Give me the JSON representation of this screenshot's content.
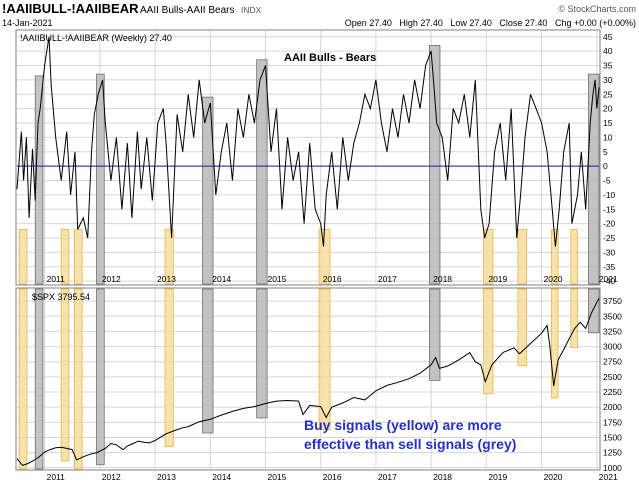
{
  "header": {
    "symbol": "!AAIIBULL-!AAIIBEAR",
    "description": "AAII Bulls-AAII Bears",
    "exchange": "INDX",
    "date": "14-Jan-2021",
    "ohlc": "Open 27.40   High 27.40   Low 27.40   Close 27.40   Chg +0.00 (+0.00%)",
    "brand": "© StockCharts.com"
  },
  "colors": {
    "line": "#000000",
    "zero_line": "#1a1aa6",
    "grey_band": "#b8b8b8",
    "grey_band_stroke": "#6e6e6e",
    "yellow_band": "#f7dd9e",
    "yellow_band_stroke": "#e4b64c",
    "annotation": "#2530c8",
    "grid": "#d6d6d6",
    "frame": "#808080"
  },
  "chart_data": [
    {
      "type": "line",
      "title": "AAII Bulls - Bears",
      "legend": "!AAIIBULL-!AAIIBEAR (Weekly) 27.40",
      "xlabel": "",
      "ylabel": "",
      "xlim": [
        2010.5,
        2021.04
      ],
      "ylim": [
        -41,
        47
      ],
      "yticks": [
        45,
        40,
        35,
        30,
        25,
        20,
        15,
        10,
        5,
        0,
        -5,
        -10,
        -15,
        -20,
        -25,
        -30,
        -35,
        -40
      ],
      "grid": true,
      "x": [
        2010.5,
        2010.58,
        2010.62,
        2010.67,
        2010.72,
        2010.78,
        2010.83,
        2010.88,
        2010.92,
        2011.0,
        2011.08,
        2011.12,
        2011.2,
        2011.3,
        2011.4,
        2011.47,
        2011.55,
        2011.6,
        2011.7,
        2011.78,
        2011.85,
        2011.9,
        2011.97,
        2012.05,
        2012.1,
        2012.2,
        2012.3,
        2012.4,
        2012.5,
        2012.58,
        2012.68,
        2012.75,
        2012.85,
        2012.95,
        2013.05,
        2013.15,
        2013.2,
        2013.3,
        2013.4,
        2013.5,
        2013.6,
        2013.7,
        2013.8,
        2013.9,
        2014.0,
        2014.1,
        2014.2,
        2014.3,
        2014.4,
        2014.5,
        2014.6,
        2014.7,
        2014.8,
        2014.9,
        2015.0,
        2015.1,
        2015.2,
        2015.3,
        2015.4,
        2015.5,
        2015.6,
        2015.7,
        2015.8,
        2015.9,
        2016.0,
        2016.05,
        2016.1,
        2016.2,
        2016.3,
        2016.4,
        2016.5,
        2016.6,
        2016.7,
        2016.8,
        2016.9,
        2017.0,
        2017.1,
        2017.2,
        2017.3,
        2017.4,
        2017.5,
        2017.6,
        2017.7,
        2017.8,
        2017.9,
        2018.0,
        2018.05,
        2018.1,
        2018.2,
        2018.3,
        2018.4,
        2018.5,
        2018.6,
        2018.7,
        2018.8,
        2018.9,
        2018.97,
        2019.05,
        2019.15,
        2019.25,
        2019.35,
        2019.45,
        2019.55,
        2019.62,
        2019.7,
        2019.8,
        2019.9,
        2020.0,
        2020.1,
        2020.17,
        2020.25,
        2020.32,
        2020.4,
        2020.5,
        2020.55,
        2020.65,
        2020.72,
        2020.8,
        2020.88,
        2020.93,
        2020.97,
        2021.0,
        2021.04
      ],
      "values": [
        -8,
        12,
        -5,
        10,
        -18,
        6,
        -12,
        15,
        20,
        35,
        45,
        28,
        10,
        -5,
        12,
        -10,
        5,
        -22,
        -18,
        -25,
        5,
        18,
        25,
        30,
        15,
        -5,
        10,
        -15,
        8,
        -18,
        12,
        -8,
        10,
        -12,
        15,
        20,
        8,
        -25,
        18,
        5,
        25,
        10,
        30,
        15,
        22,
        -10,
        5,
        15,
        -5,
        20,
        10,
        25,
        15,
        30,
        35,
        5,
        20,
        -15,
        10,
        -5,
        5,
        -20,
        8,
        -15,
        -20,
        -28,
        -10,
        5,
        -15,
        10,
        -5,
        8,
        15,
        25,
        20,
        30,
        15,
        5,
        20,
        10,
        25,
        15,
        30,
        20,
        35,
        40,
        28,
        15,
        10,
        -5,
        20,
        15,
        25,
        10,
        30,
        -15,
        -25,
        -20,
        5,
        15,
        -5,
        20,
        -25,
        -10,
        10,
        25,
        20,
        15,
        5,
        -10,
        -28,
        -15,
        5,
        15,
        -20,
        -10,
        5,
        -15,
        15,
        25,
        30,
        20,
        27.4
      ]
    },
    {
      "type": "line",
      "title": "",
      "legend": "$SPX 3795.54",
      "xlabel": "",
      "ylabel": "",
      "xlim": [
        2010.5,
        2021.04
      ],
      "ylim": [
        980,
        3950
      ],
      "yticks": [
        3750,
        3500,
        3250,
        3000,
        2750,
        2500,
        2250,
        2000,
        1750,
        1500,
        1250,
        1000
      ],
      "x_ticks": [
        "2011",
        "2012",
        "2013",
        "2014",
        "2015",
        "2016",
        "2017",
        "2018",
        "2019",
        "2020",
        "2021"
      ],
      "x_tick_values": [
        2011.0,
        2012.0,
        2013.0,
        2014.0,
        2015.0,
        2016.0,
        2017.0,
        2018.0,
        2019.0,
        2020.0,
        2021.0
      ],
      "grid": true,
      "x": [
        2010.5,
        2010.6,
        2010.7,
        2010.8,
        2010.9,
        2011.0,
        2011.1,
        2011.2,
        2011.3,
        2011.4,
        2011.5,
        2011.58,
        2011.65,
        2011.75,
        2011.85,
        2011.95,
        2012.1,
        2012.2,
        2012.3,
        2012.42,
        2012.5,
        2012.6,
        2012.7,
        2012.8,
        2012.9,
        2013.0,
        2013.2,
        2013.4,
        2013.5,
        2013.6,
        2013.8,
        2014.0,
        2014.2,
        2014.4,
        2014.6,
        2014.8,
        2015.0,
        2015.2,
        2015.4,
        2015.6,
        2015.68,
        2015.8,
        2016.0,
        2016.1,
        2016.2,
        2016.4,
        2016.6,
        2016.8,
        2017.0,
        2017.2,
        2017.4,
        2017.6,
        2017.8,
        2018.0,
        2018.08,
        2018.15,
        2018.3,
        2018.5,
        2018.7,
        2018.8,
        2018.9,
        2018.98,
        2019.1,
        2019.3,
        2019.4,
        2019.5,
        2019.6,
        2019.8,
        2020.0,
        2020.1,
        2020.15,
        2020.22,
        2020.3,
        2020.4,
        2020.5,
        2020.6,
        2020.7,
        2020.8,
        2020.9,
        2021.0,
        2021.04
      ],
      "values": [
        1150,
        1040,
        1070,
        1120,
        1180,
        1260,
        1300,
        1330,
        1340,
        1320,
        1300,
        1130,
        1160,
        1200,
        1230,
        1250,
        1320,
        1400,
        1380,
        1300,
        1360,
        1400,
        1440,
        1420,
        1410,
        1450,
        1560,
        1630,
        1660,
        1680,
        1760,
        1800,
        1870,
        1930,
        1980,
        2010,
        2060,
        2100,
        2110,
        2100,
        1880,
        2030,
        2010,
        1830,
        2000,
        2070,
        2160,
        2120,
        2270,
        2360,
        2410,
        2470,
        2560,
        2700,
        2820,
        2640,
        2680,
        2780,
        2900,
        2750,
        2700,
        2420,
        2700,
        2900,
        2940,
        2980,
        2880,
        3050,
        3220,
        3350,
        3000,
        2350,
        2780,
        2950,
        3130,
        3300,
        3400,
        3300,
        3550,
        3730,
        3795.54
      ]
    }
  ],
  "bands": {
    "grey": [
      {
        "start": 2010.83,
        "end": 2010.97
      },
      {
        "start": 2011.94,
        "end": 2012.08
      },
      {
        "start": 2013.86,
        "end": 2014.05
      },
      {
        "start": 2014.84,
        "end": 2015.03
      },
      {
        "start": 2017.97,
        "end": 2018.16
      },
      {
        "start": 2020.85,
        "end": 2021.04
      }
    ],
    "yellow": [
      {
        "start": 2010.54,
        "end": 2010.68
      },
      {
        "start": 2011.3,
        "end": 2011.44
      },
      {
        "start": 2011.54,
        "end": 2011.68
      },
      {
        "start": 2013.18,
        "end": 2013.33
      },
      {
        "start": 2015.97,
        "end": 2016.17
      },
      {
        "start": 2018.95,
        "end": 2019.12
      },
      {
        "start": 2019.57,
        "end": 2019.73
      },
      {
        "start": 2020.18,
        "end": 2020.3
      },
      {
        "start": 2020.53,
        "end": 2020.65
      }
    ]
  },
  "annotation": {
    "line1": "Buy signals (yellow) are more",
    "line2": "effective than sell signals (grey)"
  }
}
